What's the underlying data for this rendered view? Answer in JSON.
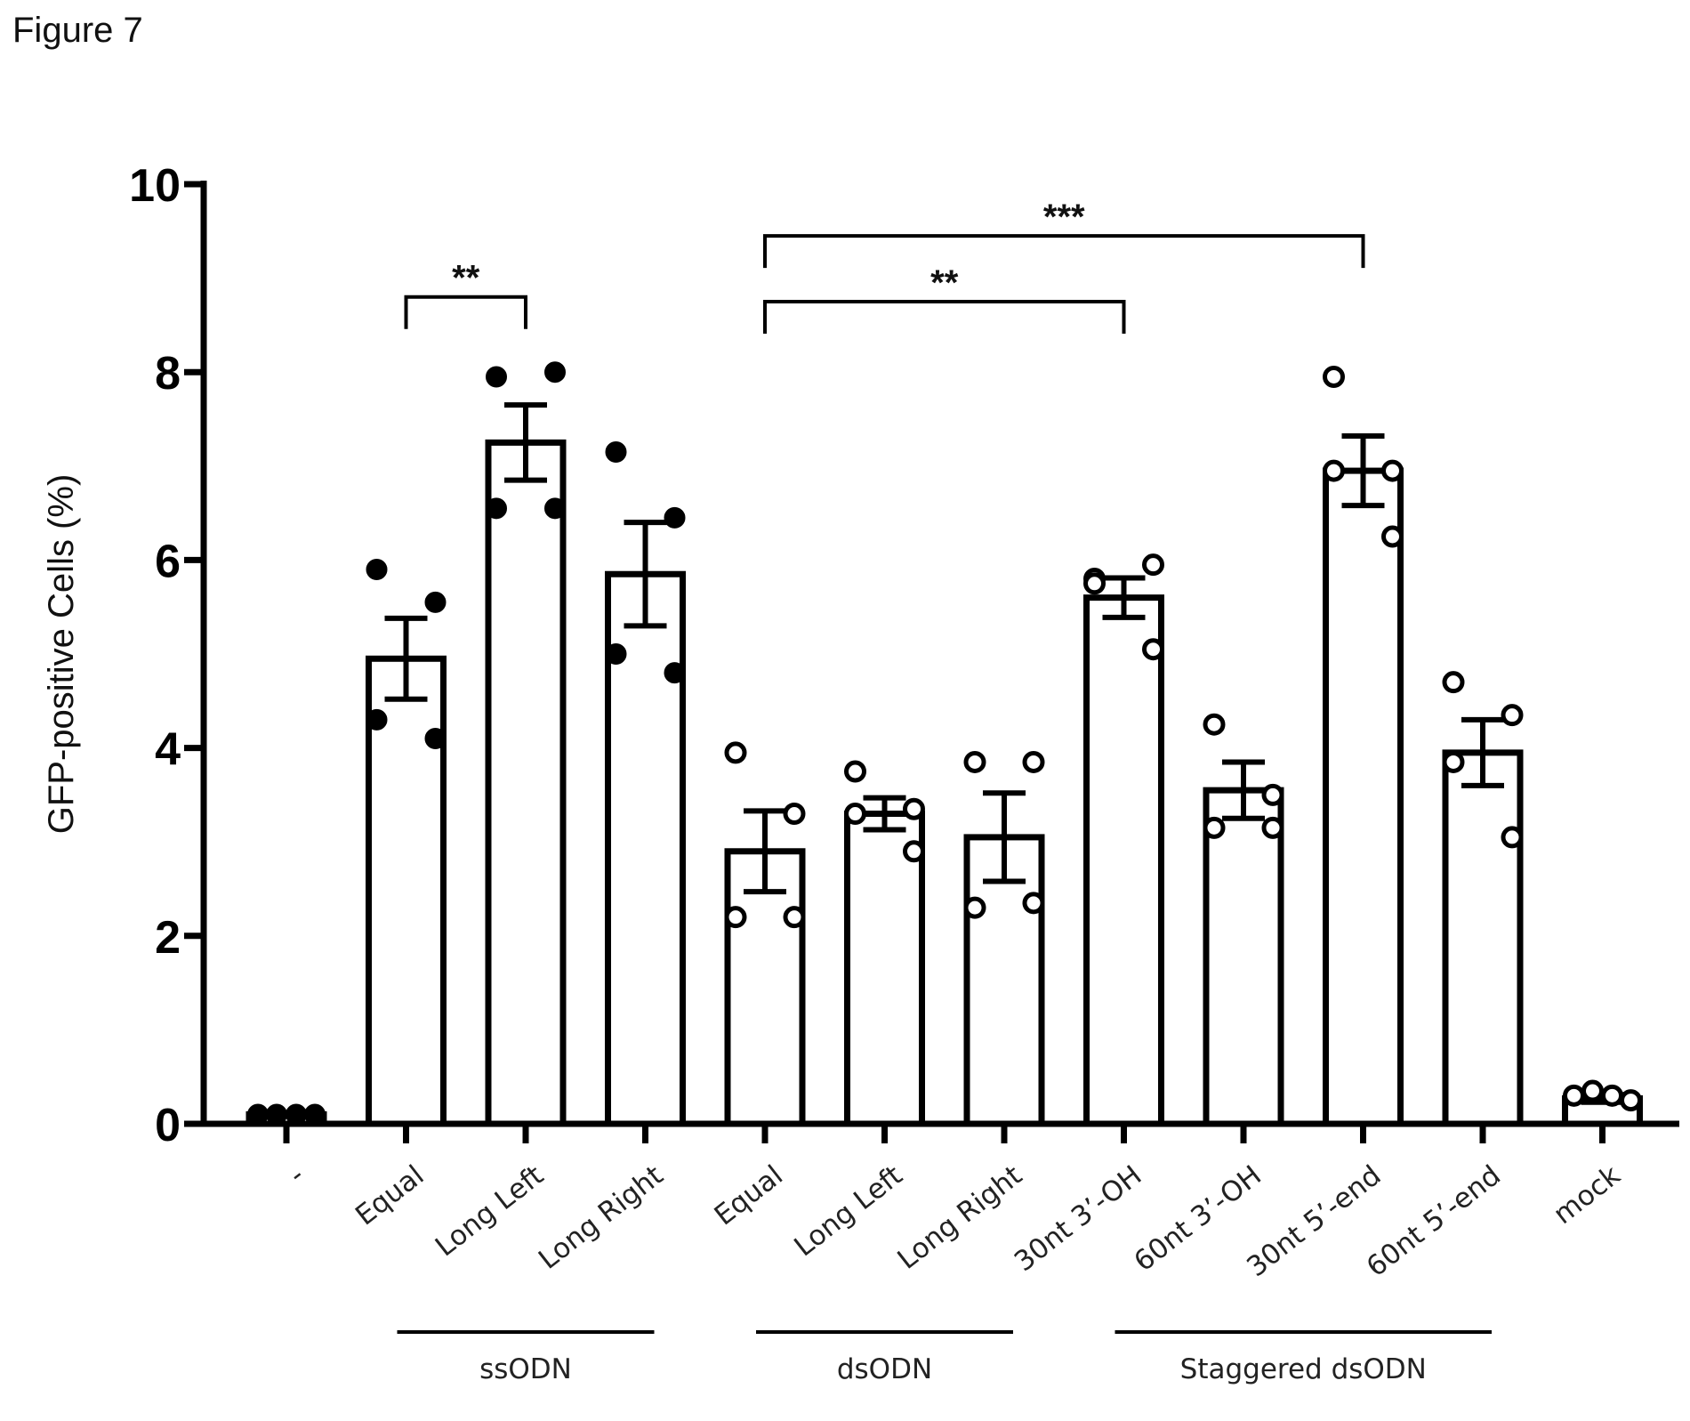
{
  "figure_label": "Figure 7",
  "chart_data": {
    "type": "bar",
    "title": "",
    "xlabel": "",
    "ylabel": "GFP-positive Cells (%)",
    "ylim": [
      0,
      10
    ],
    "yticks": [
      0,
      2,
      4,
      6,
      8,
      10
    ],
    "categories": [
      "-",
      "Equal",
      "Long Left",
      "Long Right",
      "Equal",
      "Long Left",
      "Long Right",
      "30nt 3’-OH",
      "60nt 3’-OH",
      "30nt 5’-end",
      "60nt 5’-end",
      "mock"
    ],
    "values": [
      0.1,
      4.95,
      7.25,
      5.85,
      2.9,
      3.3,
      3.05,
      5.6,
      3.55,
      6.95,
      3.95,
      0.27
    ],
    "sem": [
      0.0,
      0.43,
      0.4,
      0.55,
      0.43,
      0.17,
      0.47,
      0.21,
      0.3,
      0.37,
      0.35,
      0.04
    ],
    "points": [
      [
        0.1,
        0.1,
        0.1,
        0.1
      ],
      [
        5.9,
        5.55,
        4.3,
        4.1
      ],
      [
        7.95,
        8.0,
        6.55,
        6.55
      ],
      [
        7.15,
        6.45,
        5.0,
        4.8
      ],
      [
        3.95,
        3.3,
        2.2,
        2.2
      ],
      [
        3.75,
        3.35,
        3.3,
        2.9
      ],
      [
        3.85,
        3.85,
        2.3,
        2.35
      ],
      [
        5.8,
        5.95,
        5.75,
        5.05
      ],
      [
        4.25,
        3.5,
        3.15,
        3.15
      ],
      [
        7.95,
        6.95,
        6.95,
        6.25
      ],
      [
        4.7,
        4.35,
        3.85,
        3.05
      ],
      [
        0.3,
        0.35,
        0.3,
        0.25
      ]
    ],
    "marker_filled": [
      true,
      true,
      true,
      true,
      false,
      false,
      false,
      false,
      false,
      false,
      false,
      false
    ],
    "groups": [
      {
        "label": "ssODN",
        "from": 1,
        "to": 3
      },
      {
        "label": "dsODN",
        "from": 4,
        "to": 6
      },
      {
        "label": "Staggered dsODN",
        "from": 7,
        "to": 10
      }
    ],
    "significance": [
      {
        "from": 1,
        "to": 2,
        "label": "**",
        "y": 8.8
      },
      {
        "from": 4,
        "to": 7,
        "label": "**",
        "y": 8.75
      },
      {
        "from": 4,
        "to": 9,
        "label": "***",
        "y": 9.45
      }
    ],
    "grid": false,
    "legend": "none"
  }
}
